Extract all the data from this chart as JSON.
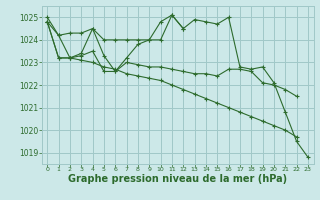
{
  "background_color": "#cce8e8",
  "grid_color": "#a0c8c8",
  "line_color": "#2d6b2d",
  "marker_color": "#2d6b2d",
  "xlabel": "Graphe pression niveau de la mer (hPa)",
  "xlabel_fontsize": 7,
  "ylim": [
    1018.5,
    1025.5
  ],
  "yticks": [
    1019,
    1020,
    1021,
    1022,
    1023,
    1024,
    1025
  ],
  "xlim": [
    -0.5,
    23.5
  ],
  "xticks": [
    0,
    1,
    2,
    3,
    4,
    5,
    6,
    7,
    8,
    9,
    10,
    11,
    12,
    13,
    14,
    15,
    16,
    17,
    18,
    19,
    20,
    21,
    22,
    23
  ],
  "series": [
    [
      1025.0,
      1024.2,
      1024.3,
      1024.3,
      1024.5,
      1024.0,
      1024.0,
      1024.0,
      1024.0,
      1024.0,
      1024.8,
      1025.1,
      1024.5,
      1024.9,
      1024.8,
      1024.7,
      1025.0,
      1022.8,
      1022.7,
      1022.8,
      1022.1,
      1020.8,
      1019.5,
      1018.8
    ],
    [
      1024.8,
      1024.2,
      1023.2,
      1023.4,
      1024.5,
      1023.3,
      1022.6,
      1023.2,
      1023.8,
      1024.0,
      1024.0,
      1025.1,
      1024.5,
      null,
      null,
      null,
      null,
      null,
      null,
      null,
      null,
      null,
      null,
      null
    ],
    [
      1024.8,
      1023.2,
      1023.2,
      1023.3,
      1023.5,
      1022.6,
      1022.6,
      1023.0,
      1022.9,
      1022.8,
      1022.8,
      1022.7,
      1022.6,
      1022.5,
      1022.5,
      1022.4,
      1022.7,
      1022.7,
      1022.6,
      1022.1,
      1022.0,
      1021.8,
      1021.5,
      null
    ],
    [
      1024.8,
      1023.2,
      1023.2,
      1023.1,
      1023.0,
      1022.8,
      1022.7,
      1022.5,
      1022.4,
      1022.3,
      1022.2,
      1022.0,
      1021.8,
      1021.6,
      1021.4,
      1021.2,
      1021.0,
      1020.8,
      1020.6,
      1020.4,
      1020.2,
      1020.0,
      1019.7,
      null
    ]
  ]
}
